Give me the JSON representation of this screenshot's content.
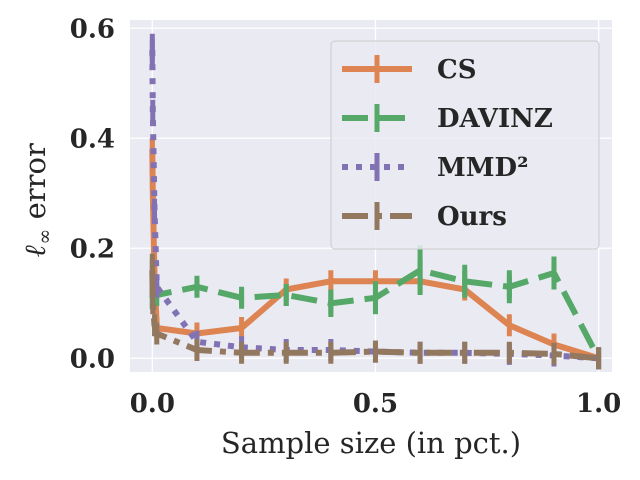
{
  "chart_data": {
    "type": "line",
    "xlabel": "Sample size (in pct.)",
    "ylabel_symbol": "ℓ",
    "ylabel_sub": "∞",
    "ylabel_text": "error",
    "xlim": [
      -0.05,
      1.03
    ],
    "ylim": [
      -0.025,
      0.615
    ],
    "xticks": [
      0.0,
      0.5,
      1.0
    ],
    "xtick_labels": [
      "0.0",
      "0.5",
      "1.0"
    ],
    "yticks": [
      0.0,
      0.2,
      0.4,
      0.6
    ],
    "ytick_labels": [
      "0.0",
      "0.2",
      "0.4",
      "0.6"
    ],
    "grid": true,
    "legend_position": "top-right",
    "series": [
      {
        "name": "CS",
        "color": "#dd8452",
        "dash": "solid",
        "x": [
          0.0,
          0.001,
          0.005,
          0.01,
          0.1,
          0.2,
          0.3,
          0.4,
          0.5,
          0.6,
          0.7,
          0.8,
          0.9,
          1.0
        ],
        "y": [
          0.38,
          0.3,
          0.15,
          0.055,
          0.045,
          0.055,
          0.125,
          0.14,
          0.14,
          0.14,
          0.125,
          0.06,
          0.025,
          0.0
        ],
        "err": [
          0.02,
          0.0,
          0.0,
          0.0,
          0.0,
          0.0,
          0.0,
          0.0,
          0.0,
          0.0,
          0.0,
          0.0,
          0.0,
          0.0
        ]
      },
      {
        "name": "DAVINZ",
        "color": "#55a868",
        "dash": "dashed",
        "x": [
          0.0,
          0.001,
          0.005,
          0.01,
          0.1,
          0.2,
          0.3,
          0.4,
          0.5,
          0.6,
          0.7,
          0.8,
          0.9,
          1.0
        ],
        "y": [
          0.11,
          0.12,
          0.115,
          0.115,
          0.13,
          0.11,
          0.115,
          0.1,
          0.11,
          0.16,
          0.14,
          0.13,
          0.155,
          0.0
        ],
        "err": [
          0.02,
          0.0,
          0.0,
          0.0,
          0.015,
          0.015,
          0.02,
          0.025,
          0.03,
          0.045,
          0.03,
          0.03,
          0.03,
          0.0
        ]
      },
      {
        "name": "MMD²",
        "color": "#8172b3",
        "dash": "dotted",
        "x": [
          0.0,
          0.001,
          0.005,
          0.01,
          0.1,
          0.2,
          0.3,
          0.4,
          0.5,
          0.6,
          0.7,
          0.8,
          0.9,
          1.0
        ],
        "y": [
          0.56,
          0.45,
          0.27,
          0.13,
          0.03,
          0.02,
          0.015,
          0.015,
          0.012,
          0.01,
          0.01,
          0.008,
          0.005,
          0.0
        ],
        "err": [
          0.03,
          0.0,
          0.0,
          0.0,
          0.0,
          0.0,
          0.0,
          0.0,
          0.0,
          0.0,
          0.0,
          0.0,
          0.0,
          0.0
        ]
      },
      {
        "name": "Ours",
        "color": "#937860",
        "dash": "dashdot",
        "x": [
          0.0,
          0.001,
          0.005,
          0.01,
          0.1,
          0.2,
          0.3,
          0.4,
          0.5,
          0.6,
          0.7,
          0.8,
          0.9,
          1.0
        ],
        "y": [
          0.16,
          0.1,
          0.06,
          0.045,
          0.015,
          0.01,
          0.01,
          0.01,
          0.012,
          0.01,
          0.01,
          0.01,
          0.008,
          0.0
        ],
        "err": [
          0.03,
          0.0,
          0.0,
          0.0,
          0.0,
          0.0,
          0.0,
          0.0,
          0.0,
          0.0,
          0.0,
          0.0,
          0.0,
          0.0
        ]
      }
    ]
  }
}
